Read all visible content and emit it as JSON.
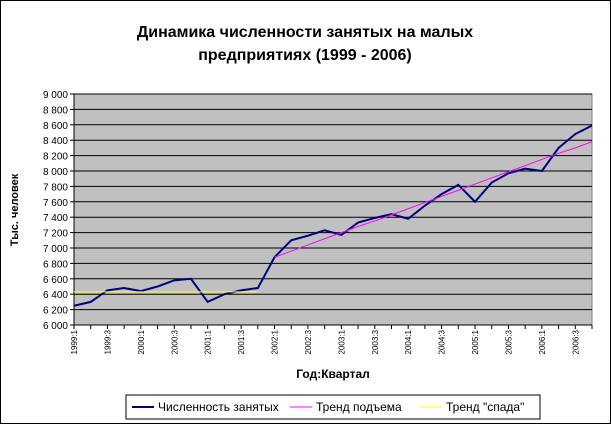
{
  "chart_data": {
    "type": "line",
    "title": [
      "Динамика численности занятых на малых",
      "предприятиях (1999 - 2006)"
    ],
    "y_label": "Тыс. человек",
    "x_label": "Год:Квартал",
    "categories": [
      "1999:1",
      null,
      "1999:3",
      null,
      "2000:1",
      null,
      "2000:3",
      null,
      "2001:1",
      null,
      "2001:3",
      null,
      "2002:1",
      null,
      "2002:3",
      null,
      "2003:1",
      null,
      "2003:3",
      null,
      "2004:1",
      null,
      "2004:3",
      null,
      "2005:1",
      null,
      "2005:3",
      null,
      "2006:1",
      null,
      "2006:3",
      null
    ],
    "series": [
      {
        "name": "Численность занятых",
        "color": "#000080",
        "values": [
          6250,
          6300,
          6450,
          6480,
          6440,
          6500,
          6580,
          6600,
          6300,
          6400,
          6450,
          6480,
          6880,
          7100,
          7160,
          7230,
          7170,
          7330,
          7390,
          7440,
          7380,
          7550,
          7700,
          7820,
          7600,
          7850,
          7970,
          8030,
          8000,
          8300,
          8480,
          8590
        ]
      },
      {
        "name": "Тренд подъема",
        "color": "#ff00ff",
        "values": [
          null,
          null,
          null,
          null,
          null,
          null,
          null,
          null,
          null,
          null,
          null,
          null,
          6880,
          6960,
          7040,
          7120,
          7200,
          7280,
          7350,
          7430,
          7510,
          7590,
          7670,
          7750,
          7830,
          7910,
          7990,
          8070,
          8150,
          8230,
          8300,
          8380
        ]
      },
      {
        "name": "Тренд \"спада\"",
        "color": "#ffff00",
        "values": [
          6430,
          6430,
          6430,
          6430,
          6430,
          6430,
          6430,
          6430,
          6430,
          6430,
          6430,
          6430,
          null,
          null,
          null,
          null,
          null,
          null,
          null,
          null,
          null,
          null,
          null,
          null,
          null,
          null,
          null,
          null,
          null,
          null,
          null,
          null
        ]
      }
    ],
    "ylim": [
      6000,
      9000
    ],
    "yticks": [
      {
        "value": 6000,
        "label": "6 000"
      },
      {
        "value": 6200,
        "label": "6 200"
      },
      {
        "value": 6400,
        "label": "6 400"
      },
      {
        "value": 6600,
        "label": "6 600"
      },
      {
        "value": 6800,
        "label": "6 800"
      },
      {
        "value": 7000,
        "label": "7 000"
      },
      {
        "value": 7200,
        "label": "7 200"
      },
      {
        "value": 7400,
        "label": "7 400"
      },
      {
        "value": 7600,
        "label": "7 600"
      },
      {
        "value": 7800,
        "label": "7 800"
      },
      {
        "value": 8000,
        "label": "8 000"
      },
      {
        "value": 8200,
        "label": "8 200"
      },
      {
        "value": 8400,
        "label": "8 400"
      },
      {
        "value": 8600,
        "label": "8 600"
      },
      {
        "value": 8800,
        "label": "8 800"
      },
      {
        "value": 9000,
        "label": "9 000"
      }
    ],
    "grid": true,
    "plot_background": "#c0c0c0",
    "legend": "bottom"
  }
}
